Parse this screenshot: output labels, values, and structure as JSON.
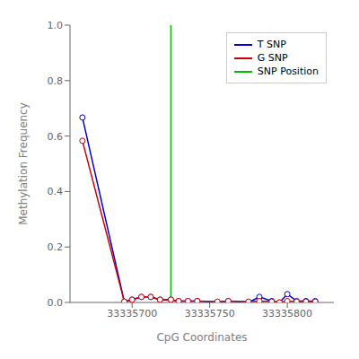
{
  "chart_data": {
    "type": "line",
    "xlabel": "CpG Coordinates",
    "ylabel": "Methylation Frequency",
    "x": [
      33335668,
      33335695,
      33335700,
      33335706,
      33335712,
      33335718,
      33335725,
      33335730,
      33335736,
      33335742,
      33335755,
      33335762,
      33335775,
      33335782,
      33335790,
      33335795,
      33335800,
      33335806,
      33335812,
      33335818
    ],
    "series": [
      {
        "name": "T SNP",
        "color": "#0000cc",
        "marker": "circle",
        "values": [
          0.667,
          0.003,
          0.01,
          0.02,
          0.02,
          0.01,
          0.01,
          0.005,
          0.005,
          0.005,
          0.0,
          0.005,
          0.0,
          0.02,
          0.005,
          0.0,
          0.03,
          0.005,
          0.005,
          0.005
        ]
      },
      {
        "name": "G SNP",
        "color": "#cc0000",
        "marker": "circle",
        "values": [
          0.583,
          0.003,
          0.01,
          0.02,
          0.02,
          0.01,
          0.01,
          0.005,
          0.005,
          0.005,
          0.003,
          0.005,
          0.003,
          0.005,
          0.003,
          0.0,
          0.005,
          0.003,
          0.003,
          0.003
        ]
      }
    ],
    "reference_lines": [
      {
        "x": 33335725,
        "name": "SNP Position",
        "color": "#00bb00"
      }
    ],
    "xlim": [
      33335660,
      33335830
    ],
    "ylim": [
      0,
      1.0
    ],
    "xticks": [
      33335700,
      33335750,
      33335800
    ],
    "yticks": [
      {
        "value": 0.0,
        "label": "0.0"
      },
      0.2,
      0.4,
      0.6,
      0.8,
      {
        "value": 1.0,
        "label": "1.0"
      }
    ],
    "legend": "upper right",
    "grid": false
  }
}
